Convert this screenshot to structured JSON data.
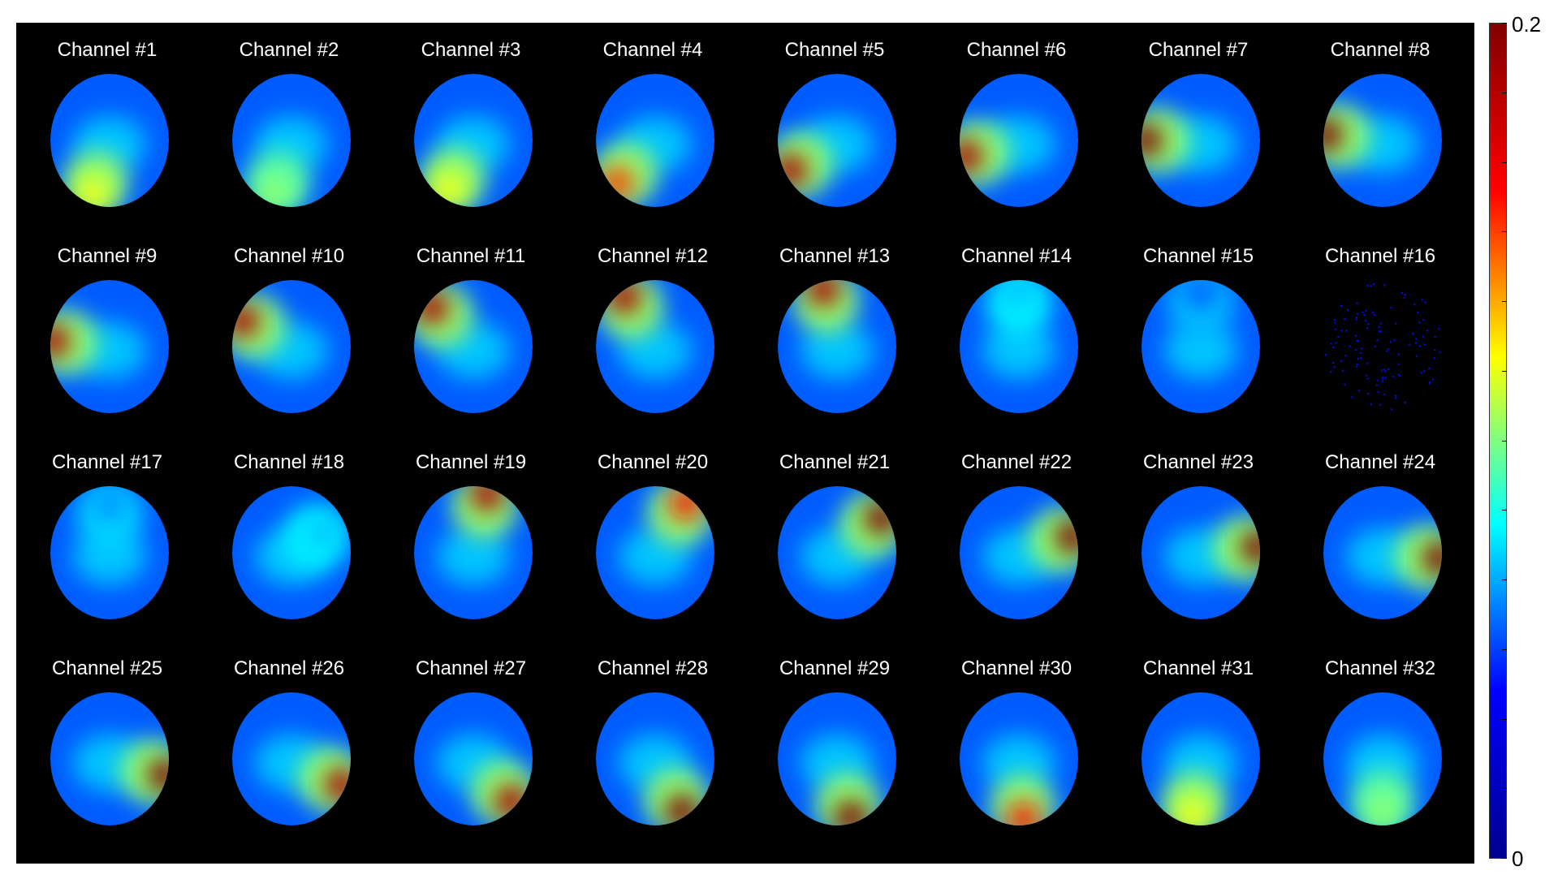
{
  "figure": {
    "background": "#000000",
    "colormap": "jet",
    "channels": [
      {
        "label": "Channel #1",
        "hotspots": [
          {
            "angle": 250,
            "r": 0.85,
            "intensity": 0.12
          }
        ]
      },
      {
        "label": "Channel #2",
        "hotspots": [
          {
            "angle": 250,
            "r": 0.85,
            "intensity": 0.1
          }
        ]
      },
      {
        "label": "Channel #3",
        "hotspots": [
          {
            "angle": 240,
            "r": 0.85,
            "intensity": 0.12
          }
        ]
      },
      {
        "label": "Channel #4",
        "hotspots": [
          {
            "angle": 225,
            "r": 0.9,
            "intensity": 0.16
          }
        ]
      },
      {
        "label": "Channel #5",
        "hotspots": [
          {
            "angle": 210,
            "r": 0.9,
            "intensity": 0.19
          }
        ]
      },
      {
        "label": "Channel #6",
        "hotspots": [
          {
            "angle": 195,
            "r": 0.92,
            "intensity": 0.19
          }
        ]
      },
      {
        "label": "Channel #7",
        "hotspots": [
          {
            "angle": 180,
            "r": 0.92,
            "intensity": 0.2
          }
        ]
      },
      {
        "label": "Channel #8",
        "hotspots": [
          {
            "angle": 175,
            "r": 0.95,
            "intensity": 0.2
          }
        ]
      },
      {
        "label": "Channel #9",
        "hotspots": [
          {
            "angle": 175,
            "r": 0.95,
            "intensity": 0.19
          }
        ]
      },
      {
        "label": "Channel #10",
        "hotspots": [
          {
            "angle": 155,
            "r": 0.9,
            "intensity": 0.19
          }
        ]
      },
      {
        "label": "Channel #11",
        "hotspots": [
          {
            "angle": 140,
            "r": 0.9,
            "intensity": 0.19
          }
        ]
      },
      {
        "label": "Channel #12",
        "hotspots": [
          {
            "angle": 125,
            "r": 0.9,
            "intensity": 0.19
          }
        ]
      },
      {
        "label": "Channel #13",
        "hotspots": [
          {
            "angle": 105,
            "r": 0.88,
            "intensity": 0.19
          }
        ]
      },
      {
        "label": "Channel #14",
        "hotspots": [
          {
            "angle": 90,
            "r": 0.8,
            "intensity": 0.06
          }
        ]
      },
      {
        "label": "Channel #15",
        "hotspots": [
          {
            "angle": 90,
            "r": 0.8,
            "intensity": 0.04
          }
        ]
      },
      {
        "label": "Channel #16",
        "hotspots": []
      },
      {
        "label": "Channel #17",
        "hotspots": [
          {
            "angle": 90,
            "r": 0.7,
            "intensity": 0.05
          }
        ]
      },
      {
        "label": "Channel #18",
        "hotspots": [
          {
            "angle": 30,
            "r": 0.6,
            "intensity": 0.06
          }
        ]
      },
      {
        "label": "Channel #19",
        "hotspots": [
          {
            "angle": 75,
            "r": 0.9,
            "intensity": 0.19
          }
        ]
      },
      {
        "label": "Channel #20",
        "hotspots": [
          {
            "angle": 55,
            "r": 0.9,
            "intensity": 0.17
          }
        ]
      },
      {
        "label": "Channel #21",
        "hotspots": [
          {
            "angle": 35,
            "r": 0.9,
            "intensity": 0.2
          }
        ]
      },
      {
        "label": "Channel #22",
        "hotspots": [
          {
            "angle": 15,
            "r": 0.92,
            "intensity": 0.2
          }
        ]
      },
      {
        "label": "Channel #23",
        "hotspots": [
          {
            "angle": 5,
            "r": 0.95,
            "intensity": 0.2
          }
        ]
      },
      {
        "label": "Channel #24",
        "hotspots": [
          {
            "angle": -5,
            "r": 0.95,
            "intensity": 0.2
          }
        ]
      },
      {
        "label": "Channel #25",
        "hotspots": [
          {
            "angle": -15,
            "r": 0.95,
            "intensity": 0.2
          }
        ]
      },
      {
        "label": "Channel #26",
        "hotspots": [
          {
            "angle": -25,
            "r": 0.92,
            "intensity": 0.19
          }
        ]
      },
      {
        "label": "Channel #27",
        "hotspots": [
          {
            "angle": -45,
            "r": 0.9,
            "intensity": 0.19
          }
        ]
      },
      {
        "label": "Channel #28",
        "hotspots": [
          {
            "angle": -60,
            "r": 0.9,
            "intensity": 0.2
          }
        ]
      },
      {
        "label": "Channel #29",
        "hotspots": [
          {
            "angle": -75,
            "r": 0.9,
            "intensity": 0.2
          }
        ]
      },
      {
        "label": "Channel #30",
        "hotspots": [
          {
            "angle": -85,
            "r": 0.9,
            "intensity": 0.17
          }
        ]
      },
      {
        "label": "Channel #31",
        "hotspots": [
          {
            "angle": -100,
            "r": 0.85,
            "intensity": 0.12
          }
        ]
      },
      {
        "label": "Channel #32",
        "hotspots": [
          {
            "angle": -90,
            "r": 0.8,
            "intensity": 0.1
          }
        ]
      }
    ]
  },
  "colorbar": {
    "max_label": "0.2",
    "min_label": "0",
    "min": 0,
    "max": 0.2,
    "stops": [
      "#00008f",
      "#0000ff",
      "#00ffff",
      "#ffff00",
      "#ff0000",
      "#800000"
    ]
  }
}
